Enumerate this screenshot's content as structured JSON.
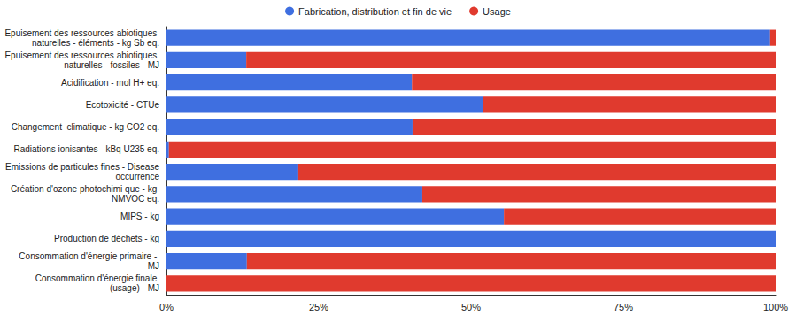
{
  "chart_data": {
    "type": "bar",
    "orientation": "horizontal",
    "stacked": true,
    "grid": false,
    "legend": "top",
    "categories": [
      "Epuisement des ressources abiotiques naturelles - éléments - kg Sb eq.",
      "Epuisement des ressources abiotiques naturelles - fossiles - MJ",
      "Acidification - mol H+ eq.",
      "Ecotoxicité - CTUe",
      "Changement  climatique - kg CO2 eq.",
      "Radiations ionisantes - kBq U235 eq.",
      "Emissions de particules fines - Disease occurrence",
      "Création d'ozone photochimi que - kg NMVOC eq.",
      "MIPS - kg",
      "Production de déchets - kg",
      "Consommation d'énergie primaire - MJ",
      "Consommation d'énergie finale (usage) - MJ"
    ],
    "series": [
      {
        "name": "Fabrication, distribution et fin de vie",
        "color": "#3f6fe0",
        "values": [
          99.1,
          13.1,
          40.3,
          51.9,
          40.4,
          0.4,
          21.5,
          42.0,
          55.4,
          100,
          13.2,
          0
        ]
      },
      {
        "name": "Usage",
        "color": "#e03a2e",
        "values": [
          0.9,
          86.9,
          59.7,
          48.1,
          59.6,
          99.6,
          78.5,
          58.0,
          44.6,
          0,
          86.8,
          100
        ]
      }
    ],
    "xlim": [
      0,
      100
    ],
    "xticks": [
      {
        "value": 0,
        "label": "0%"
      },
      {
        "value": 25,
        "label": "25%"
      },
      {
        "value": 50,
        "label": "50%"
      },
      {
        "value": 75,
        "label": "75%"
      },
      {
        "value": 100,
        "label": "100%"
      }
    ]
  }
}
